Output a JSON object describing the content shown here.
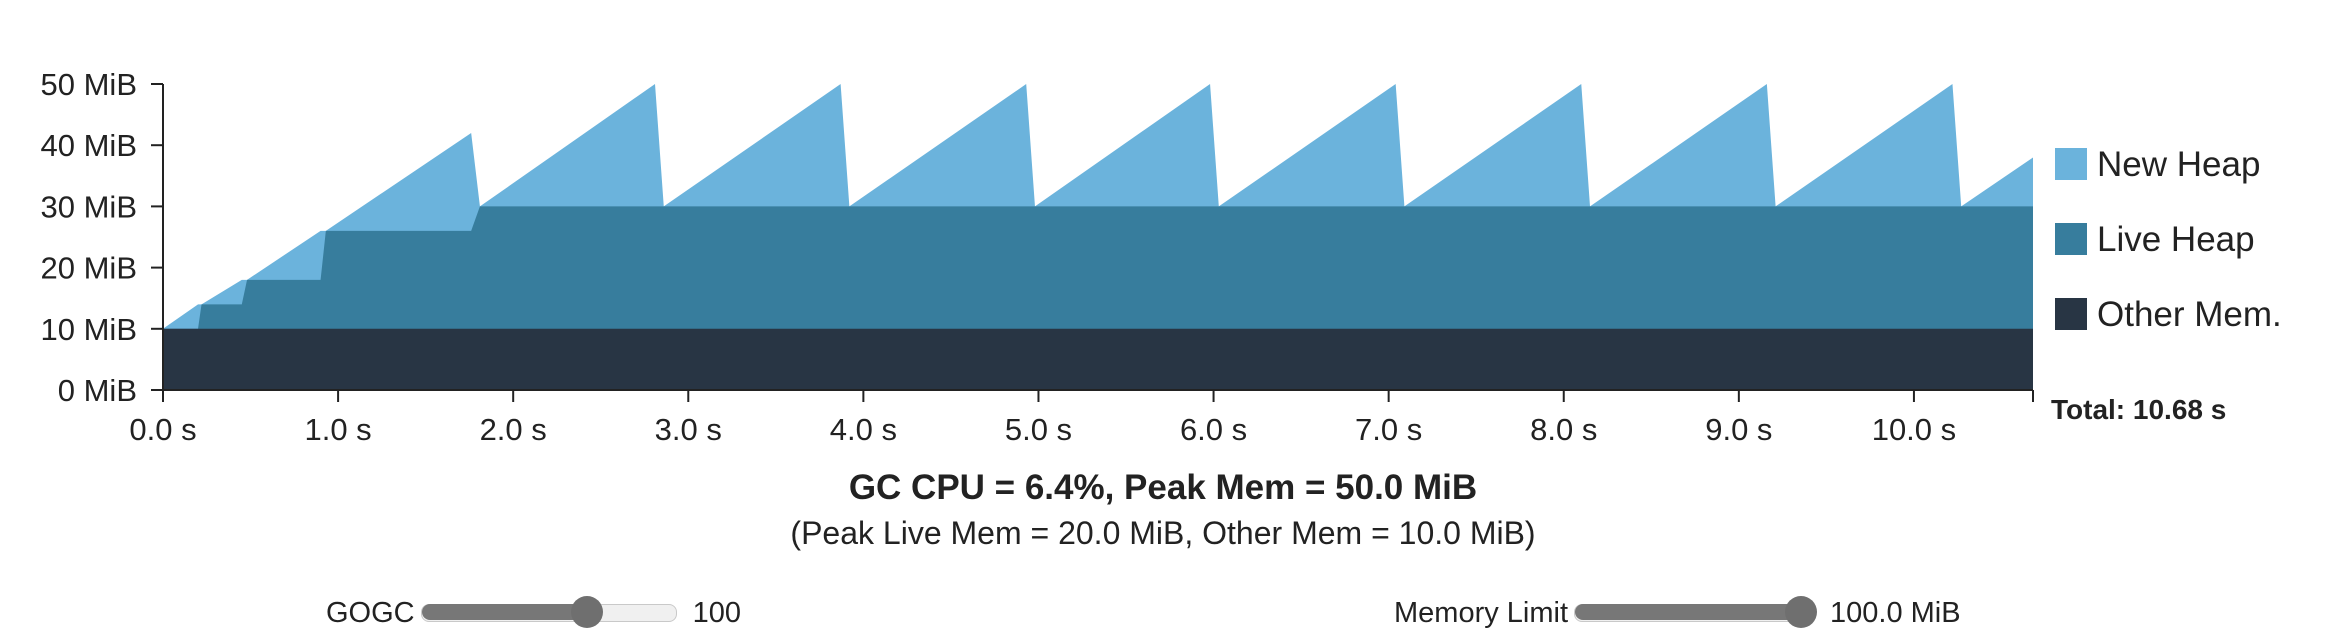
{
  "chart_data": {
    "type": "area",
    "stacked": true,
    "y_ticks": [
      "0 MiB",
      "10 MiB",
      "20 MiB",
      "30 MiB",
      "40 MiB",
      "50 MiB"
    ],
    "y_tick_values": [
      0,
      10,
      20,
      30,
      40,
      50
    ],
    "x_ticks": [
      "0.0 s",
      "1.0 s",
      "2.0 s",
      "3.0 s",
      "4.0 s",
      "5.0 s",
      "6.0 s",
      "7.0 s",
      "8.0 s",
      "9.0 s",
      "10.0 s"
    ],
    "x_tick_values": [
      0,
      1,
      2,
      3,
      4,
      5,
      6,
      7,
      8,
      9,
      10
    ],
    "xlim": [
      0,
      10.68
    ],
    "ylim": [
      0,
      50
    ],
    "total_label": "Total: 10.68 s",
    "legend": {
      "placement": "right",
      "items": [
        {
          "label": "New Heap",
          "color": "#6bb3dc"
        },
        {
          "label": "Live Heap",
          "color": "#377d9d"
        },
        {
          "label": "Other Mem.",
          "color": "#283544"
        }
      ]
    },
    "series": [
      {
        "name": "Other Mem.",
        "color": "#283544",
        "points": [
          [
            0,
            10
          ],
          [
            10.68,
            10
          ]
        ]
      },
      {
        "name": "Live Heap",
        "color": "#377d9d",
        "points": [
          [
            0,
            10
          ],
          [
            0.2,
            10
          ],
          [
            0.22,
            14
          ],
          [
            0.45,
            14
          ],
          [
            0.48,
            18
          ],
          [
            0.9,
            18
          ],
          [
            0.93,
            26
          ],
          [
            1.76,
            26
          ],
          [
            1.81,
            30
          ],
          [
            10.68,
            30
          ]
        ]
      },
      {
        "name": "New Heap",
        "color": "#6bb3dc",
        "points": [
          [
            0,
            10
          ],
          [
            0.2,
            14
          ],
          [
            0.22,
            14
          ],
          [
            0.45,
            18
          ],
          [
            0.48,
            18
          ],
          [
            0.9,
            26
          ],
          [
            0.93,
            26
          ],
          [
            1.76,
            42
          ],
          [
            1.81,
            30
          ],
          [
            2.81,
            50
          ],
          [
            2.86,
            30
          ],
          [
            3.87,
            50
          ],
          [
            3.92,
            30
          ],
          [
            4.93,
            50
          ],
          [
            4.98,
            30
          ],
          [
            5.98,
            50
          ],
          [
            6.03,
            30
          ],
          [
            7.04,
            50
          ],
          [
            7.09,
            30
          ],
          [
            8.1,
            50
          ],
          [
            8.15,
            30
          ],
          [
            9.16,
            50
          ],
          [
            9.21,
            30
          ],
          [
            10.22,
            50
          ],
          [
            10.27,
            30
          ],
          [
            10.68,
            38
          ]
        ]
      }
    ]
  },
  "summary": {
    "main": "GC CPU = 6.4%, Peak Mem = 50.0 MiB",
    "sub": "(Peak Live Mem = 20.0 MiB, Other Mem = 10.0 MiB)"
  },
  "controls": {
    "gogc": {
      "label": "GOGC",
      "value_text": "100",
      "fraction": 0.65
    },
    "memory_limit": {
      "label": "Memory Limit",
      "value_text": "100.0 MiB",
      "fraction": 1.0
    }
  }
}
